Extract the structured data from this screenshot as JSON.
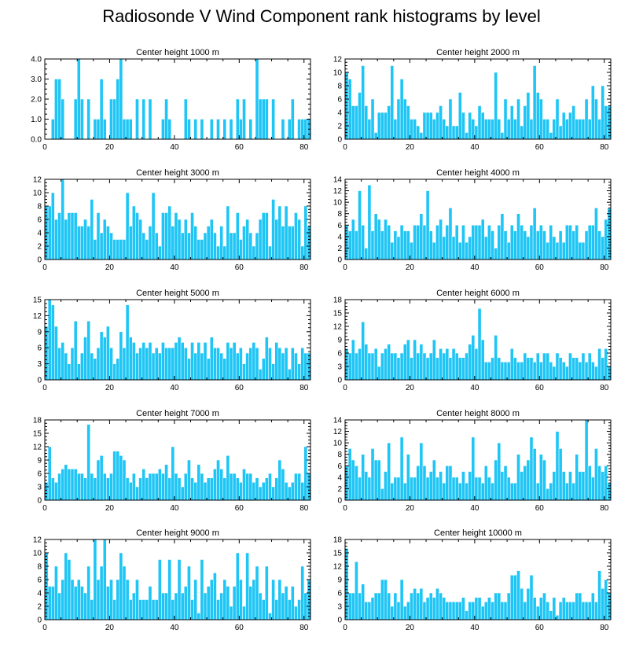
{
  "title": "Radiosonde V Wind Component rank histograms by level",
  "colors": {
    "bar": "#1EC5F5",
    "bar_edge": "#ffffff",
    "axis": "#000000"
  },
  "chart_data": [
    {
      "type": "bar",
      "title": "Center height 1000 m",
      "xlim": [
        0,
        82
      ],
      "xticks": [
        0,
        20,
        40,
        60,
        80
      ],
      "ylim": [
        0,
        4
      ],
      "yticks": [
        0,
        1,
        2,
        3,
        4
      ],
      "ytick_labels": [
        "0.0",
        "1.0",
        "2.0",
        "3.0",
        "4.0"
      ],
      "values": [
        0,
        0,
        1,
        3,
        3,
        2,
        0,
        0,
        0,
        2,
        4,
        2,
        0,
        2,
        0,
        1,
        1,
        3,
        1,
        0,
        2,
        2,
        3,
        4,
        1,
        1,
        1,
        0,
        2,
        0,
        2,
        0,
        2,
        0,
        0,
        0,
        1,
        2,
        1,
        0,
        0,
        0,
        0,
        2,
        1,
        0,
        1,
        0,
        1,
        0,
        0,
        1,
        0,
        1,
        0,
        1,
        0,
        1,
        0,
        2,
        1,
        2,
        0,
        1,
        0,
        4,
        2,
        2,
        2,
        0,
        2,
        0,
        0,
        1,
        0,
        1,
        2,
        0,
        1,
        1,
        1,
        1
      ],
      "xlabel": "",
      "ylabel": ""
    },
    {
      "type": "bar",
      "title": "Center height 2000 m",
      "xlim": [
        0,
        82
      ],
      "xticks": [
        0,
        20,
        40,
        60,
        80
      ],
      "ylim": [
        0,
        12
      ],
      "yticks": [
        0,
        2,
        4,
        6,
        8,
        10,
        12
      ],
      "ytick_labels": [
        "0",
        "2",
        "4",
        "6",
        "8",
        "10",
        "12"
      ],
      "values": [
        10,
        9,
        5,
        5,
        7,
        11,
        5,
        3,
        6,
        1,
        4,
        4,
        4,
        5,
        11,
        3,
        6,
        9,
        6,
        5,
        3,
        3,
        2,
        1,
        4,
        4,
        4,
        3,
        4,
        5,
        3,
        2,
        6,
        2,
        2,
        7,
        4,
        1,
        4,
        3,
        2,
        5,
        4,
        3,
        3,
        3,
        10,
        3,
        1,
        6,
        3,
        5,
        3,
        6,
        2,
        5,
        7,
        3,
        11,
        7,
        6,
        3,
        3,
        1,
        3,
        6,
        2,
        4,
        3,
        4,
        5,
        3,
        3,
        3,
        6,
        3,
        8,
        6,
        3,
        8,
        5,
        5
      ],
      "xlabel": "",
      "ylabel": ""
    },
    {
      "type": "bar",
      "title": "Center height 3000 m",
      "xlim": [
        0,
        82
      ],
      "xticks": [
        0,
        20,
        40,
        60,
        80
      ],
      "ylim": [
        0,
        12
      ],
      "yticks": [
        0,
        2,
        4,
        6,
        8,
        10,
        12
      ],
      "ytick_labels": [
        "0",
        "2",
        "4",
        "6",
        "8",
        "10",
        "12"
      ],
      "values": [
        8,
        8,
        10,
        6,
        7,
        12,
        6,
        7,
        7,
        7,
        5,
        5,
        6,
        5,
        9,
        3,
        7,
        4,
        6,
        5,
        4,
        3,
        3,
        3,
        3,
        10,
        5,
        8,
        7,
        6,
        4,
        3,
        5,
        10,
        4,
        2,
        7,
        7,
        8,
        5,
        7,
        6,
        4,
        6,
        4,
        7,
        5,
        3,
        3,
        4,
        5,
        6,
        4,
        2,
        5,
        2,
        8,
        4,
        4,
        7,
        3,
        5,
        6,
        4,
        2,
        4,
        6,
        7,
        7,
        2,
        9,
        6,
        8,
        5,
        8,
        5,
        5,
        7,
        6,
        2,
        8,
        5
      ],
      "xlabel": "",
      "ylabel": ""
    },
    {
      "type": "bar",
      "title": "Center height 4000 m",
      "xlim": [
        0,
        82
      ],
      "xticks": [
        0,
        20,
        40,
        60,
        80
      ],
      "ylim": [
        0,
        14
      ],
      "yticks": [
        0,
        2,
        4,
        6,
        8,
        10,
        12,
        14
      ],
      "ytick_labels": [
        "0",
        "2",
        "4",
        "6",
        "8",
        "10",
        "12",
        "14"
      ],
      "values": [
        6,
        5,
        7,
        5,
        12,
        6,
        2,
        13,
        5,
        8,
        7,
        5,
        7,
        6,
        3,
        5,
        4,
        6,
        5,
        5,
        3,
        6,
        6,
        8,
        6,
        12,
        5,
        3,
        6,
        7,
        4,
        6,
        9,
        4,
        6,
        3,
        6,
        3,
        4,
        6,
        6,
        6,
        7,
        4,
        6,
        5,
        2,
        6,
        8,
        5,
        3,
        6,
        5,
        8,
        6,
        5,
        4,
        6,
        9,
        5,
        6,
        5,
        3,
        6,
        4,
        3,
        5,
        3,
        6,
        6,
        5,
        6,
        3,
        3,
        5,
        6,
        6,
        9,
        5,
        4,
        7,
        9
      ],
      "xlabel": "",
      "ylabel": ""
    },
    {
      "type": "bar",
      "title": "Center height 5000 m",
      "xlim": [
        0,
        82
      ],
      "xticks": [
        0,
        20,
        40,
        60,
        80
      ],
      "ylim": [
        0,
        15
      ],
      "yticks": [
        0,
        3,
        6,
        9,
        12,
        15
      ],
      "ytick_labels": [
        "0",
        "3",
        "6",
        "9",
        "12",
        "15"
      ],
      "values": [
        10,
        15,
        14,
        10,
        6,
        7,
        5,
        3,
        6,
        11,
        3,
        5,
        8,
        11,
        5,
        4,
        6,
        9,
        8,
        10,
        6,
        3,
        4,
        9,
        6,
        14,
        8,
        7,
        5,
        6,
        7,
        6,
        7,
        5,
        6,
        5,
        7,
        6,
        6,
        6,
        7,
        8,
        7,
        6,
        4,
        7,
        5,
        7,
        5,
        7,
        4,
        8,
        6,
        6,
        5,
        4,
        7,
        6,
        7,
        5,
        6,
        3,
        5,
        6,
        7,
        6,
        2,
        4,
        8,
        6,
        3,
        7,
        6,
        5,
        6,
        2,
        6,
        5,
        3,
        6,
        5,
        5
      ],
      "xlabel": "",
      "ylabel": ""
    },
    {
      "type": "bar",
      "title": "Center height 6000 m",
      "xlim": [
        0,
        82
      ],
      "xticks": [
        0,
        20,
        40,
        60,
        80
      ],
      "ylim": [
        0,
        18
      ],
      "yticks": [
        0,
        3,
        6,
        9,
        12,
        15,
        18
      ],
      "ytick_labels": [
        "0",
        "3",
        "6",
        "9",
        "12",
        "15",
        "18"
      ],
      "values": [
        7,
        6,
        9,
        6,
        7,
        13,
        8,
        6,
        6,
        7,
        3,
        6,
        7,
        8,
        6,
        6,
        5,
        6,
        8,
        9,
        5,
        9,
        6,
        8,
        6,
        5,
        6,
        9,
        5,
        7,
        6,
        7,
        5,
        7,
        6,
        5,
        5,
        6,
        8,
        10,
        7,
        16,
        9,
        4,
        4,
        5,
        10,
        5,
        4,
        4,
        4,
        7,
        5,
        4,
        4,
        6,
        5,
        5,
        4,
        6,
        4,
        6,
        6,
        4,
        3,
        6,
        5,
        4,
        3,
        6,
        5,
        5,
        4,
        6,
        4,
        6,
        4,
        3,
        7,
        5,
        7,
        3
      ],
      "xlabel": "",
      "ylabel": ""
    },
    {
      "type": "bar",
      "title": "Center height 7000 m",
      "xlim": [
        0,
        82
      ],
      "xticks": [
        0,
        20,
        40,
        60,
        80
      ],
      "ylim": [
        0,
        18
      ],
      "yticks": [
        0,
        3,
        6,
        9,
        12,
        15,
        18
      ],
      "ytick_labels": [
        "0",
        "3",
        "6",
        "9",
        "12",
        "15",
        "18"
      ],
      "values": [
        4,
        12,
        5,
        4,
        6,
        7,
        8,
        7,
        7,
        7,
        6,
        6,
        5,
        17,
        6,
        5,
        9,
        10,
        6,
        5,
        6,
        11,
        11,
        10,
        9,
        5,
        4,
        6,
        3,
        5,
        7,
        5,
        6,
        6,
        6,
        7,
        6,
        8,
        5,
        12,
        6,
        5,
        3,
        6,
        9,
        5,
        4,
        8,
        6,
        4,
        5,
        5,
        7,
        9,
        7,
        5,
        10,
        6,
        6,
        5,
        4,
        7,
        6,
        6,
        4,
        5,
        3,
        4,
        5,
        6,
        3,
        5,
        9,
        7,
        4,
        3,
        4,
        6,
        6,
        4,
        12,
        6
      ],
      "xlabel": "",
      "ylabel": ""
    },
    {
      "type": "bar",
      "title": "Center height 8000 m",
      "xlim": [
        0,
        82
      ],
      "xticks": [
        0,
        20,
        40,
        60,
        80
      ],
      "ylim": [
        0,
        14
      ],
      "yticks": [
        0,
        2,
        4,
        6,
        8,
        10,
        12,
        14
      ],
      "ytick_labels": [
        "0",
        "2",
        "4",
        "6",
        "8",
        "10",
        "12",
        "14"
      ],
      "values": [
        6,
        9,
        7,
        6,
        4,
        8,
        5,
        4,
        9,
        7,
        7,
        2,
        5,
        10,
        3,
        4,
        4,
        11,
        3,
        8,
        4,
        4,
        6,
        10,
        6,
        4,
        5,
        7,
        4,
        5,
        3,
        6,
        6,
        4,
        4,
        3,
        5,
        3,
        5,
        11,
        4,
        4,
        3,
        6,
        4,
        3,
        7,
        10,
        5,
        6,
        4,
        3,
        3,
        8,
        5,
        6,
        7,
        11,
        9,
        3,
        8,
        7,
        2,
        3,
        5,
        12,
        9,
        5,
        3,
        5,
        3,
        8,
        5,
        5,
        14,
        6,
        4,
        9,
        6,
        5,
        6,
        3
      ],
      "xlabel": "",
      "ylabel": ""
    },
    {
      "type": "bar",
      "title": "Center height 9000 m",
      "xlim": [
        0,
        82
      ],
      "xticks": [
        0,
        20,
        40,
        60,
        80
      ],
      "ylim": [
        0,
        12
      ],
      "yticks": [
        0,
        2,
        4,
        6,
        8,
        10,
        12
      ],
      "ytick_labels": [
        "0",
        "2",
        "4",
        "6",
        "8",
        "10",
        "12"
      ],
      "values": [
        10,
        5,
        5,
        8,
        4,
        6,
        10,
        9,
        6,
        5,
        6,
        5,
        4,
        8,
        3,
        12,
        6,
        8,
        12,
        5,
        6,
        3,
        6,
        10,
        8,
        6,
        3,
        4,
        6,
        3,
        3,
        3,
        5,
        3,
        3,
        9,
        4,
        4,
        9,
        3,
        4,
        9,
        4,
        5,
        8,
        3,
        6,
        1,
        9,
        4,
        5,
        6,
        7,
        3,
        4,
        6,
        5,
        2,
        5,
        10,
        6,
        2,
        10,
        5,
        6,
        8,
        4,
        3,
        8,
        1,
        6,
        3,
        6,
        4,
        5,
        3,
        5,
        2,
        3,
        8,
        4,
        6
      ],
      "xlabel": "",
      "ylabel": ""
    },
    {
      "type": "bar",
      "title": "Center height 10000 m",
      "xlim": [
        0,
        82
      ],
      "xticks": [
        0,
        20,
        40,
        60,
        80
      ],
      "ylim": [
        0,
        18
      ],
      "yticks": [
        0,
        3,
        6,
        9,
        12,
        15,
        18
      ],
      "ytick_labels": [
        "0",
        "3",
        "6",
        "9",
        "12",
        "15",
        "18"
      ],
      "values": [
        16,
        6,
        6,
        13,
        6,
        8,
        4,
        4,
        5,
        6,
        6,
        9,
        9,
        6,
        3,
        6,
        4,
        9,
        3,
        4,
        6,
        7,
        6,
        7,
        4,
        5,
        6,
        5,
        7,
        6,
        5,
        4,
        4,
        4,
        4,
        4,
        5,
        2,
        4,
        4,
        5,
        5,
        3,
        4,
        5,
        4,
        6,
        6,
        4,
        4,
        6,
        10,
        10,
        11,
        7,
        4,
        7,
        10,
        5,
        3,
        5,
        6,
        4,
        2,
        5,
        1,
        4,
        5,
        4,
        4,
        4,
        6,
        6,
        4,
        4,
        4,
        6,
        4,
        11,
        7,
        9,
        6
      ],
      "xlabel": "",
      "ylabel": ""
    }
  ]
}
